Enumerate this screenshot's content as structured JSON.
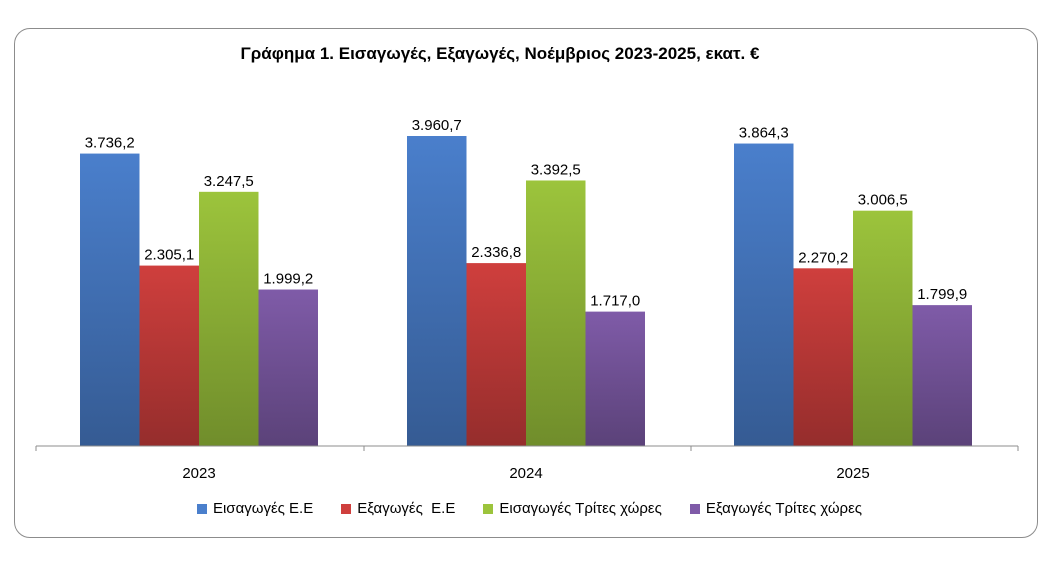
{
  "chart_data": {
    "type": "bar",
    "title": "Γράφημα 1. Εισαγωγές, Εξαγωγές, Νοέμβριος 2023-2025, εκατ. €",
    "categories": [
      "2023",
      "2024",
      "2025"
    ],
    "series": [
      {
        "name": "Εισαγωγές Ε.Ε",
        "color": "#4a7fcc",
        "values": [
          3736.2,
          3960.7,
          3864.3
        ],
        "labels": [
          "3.736,2",
          "3.960,7",
          "3.864,3"
        ]
      },
      {
        "name": "Εξαγωγές  Ε.Ε",
        "color": "#cf3f3d",
        "values": [
          2305.1,
          2336.8,
          2270.2
        ],
        "labels": [
          "2.305,1",
          "2.336,8",
          "2.270,2"
        ]
      },
      {
        "name": "Εισαγωγές Τρίτες χώρες",
        "color": "#9cc43c",
        "values": [
          3247.5,
          3392.5,
          3006.5
        ],
        "labels": [
          "3.247,5",
          "3.392,5",
          "3.006,5"
        ]
      },
      {
        "name": "Εξαγωγές Τρίτες χώρες",
        "color": "#7f5ba8",
        "values": [
          1999.2,
          1717.0,
          1799.9
        ],
        "labels": [
          "1.999,2",
          "1.717,0",
          "1.799,9"
        ]
      }
    ],
    "ylim": [
      0,
      4000
    ],
    "grid": false,
    "legend_position": "bottom"
  }
}
